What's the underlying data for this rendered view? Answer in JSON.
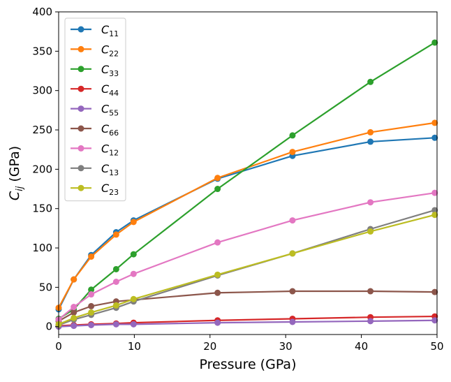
{
  "chart_data": {
    "type": "line",
    "xlabel": "Pressure (GPa)",
    "ylabel": "C",
    "ylabel_sub": "ij",
    "ylabel_unit": " (GPa)",
    "xlim": [
      0,
      50
    ],
    "ylim": [
      -10,
      400
    ],
    "xticks": [
      0,
      10,
      20,
      30,
      40,
      50
    ],
    "yticks": [
      0,
      50,
      100,
      150,
      200,
      250,
      300,
      350,
      400
    ],
    "grid": false,
    "legend_position": "top-left",
    "x": [
      0,
      2,
      4.3,
      7.6,
      9.9,
      21,
      30.9,
      41.2,
      49.7
    ],
    "series": [
      {
        "name": "C",
        "sub": "11",
        "color": "#1f77b4",
        "values": [
          22,
          60,
          91,
          120,
          135,
          188,
          217,
          235,
          240
        ]
      },
      {
        "name": "C",
        "sub": "22",
        "color": "#ff7f0e",
        "values": [
          24,
          60,
          89,
          117,
          133,
          189,
          222,
          247,
          259
        ]
      },
      {
        "name": "C",
        "sub": "33",
        "color": "#2ca02c",
        "values": [
          10,
          22,
          47,
          73,
          92,
          175,
          243,
          311,
          361
        ]
      },
      {
        "name": "C",
        "sub": "44",
        "color": "#d62728",
        "values": [
          1,
          2,
          3,
          4,
          5,
          8,
          10,
          12,
          13
        ]
      },
      {
        "name": "C",
        "sub": "55",
        "color": "#9467bd",
        "values": [
          0,
          1,
          2,
          3,
          3,
          5,
          6,
          7,
          8
        ]
      },
      {
        "name": "C",
        "sub": "66",
        "color": "#8c564b",
        "values": [
          7,
          18,
          26,
          32,
          34,
          43,
          45,
          45,
          44
        ]
      },
      {
        "name": "C",
        "sub": "12",
        "color": "#e377c2",
        "values": [
          9,
          25,
          41,
          57,
          67,
          107,
          135,
          158,
          170
        ]
      },
      {
        "name": "C",
        "sub": "13",
        "color": "#7f7f7f",
        "values": [
          2,
          9,
          15,
          24,
          32,
          65,
          93,
          124,
          148
        ]
      },
      {
        "name": "C",
        "sub": "23",
        "color": "#bcbd22",
        "values": [
          3,
          11,
          18,
          27,
          35,
          66,
          93,
          121,
          142
        ]
      }
    ]
  }
}
